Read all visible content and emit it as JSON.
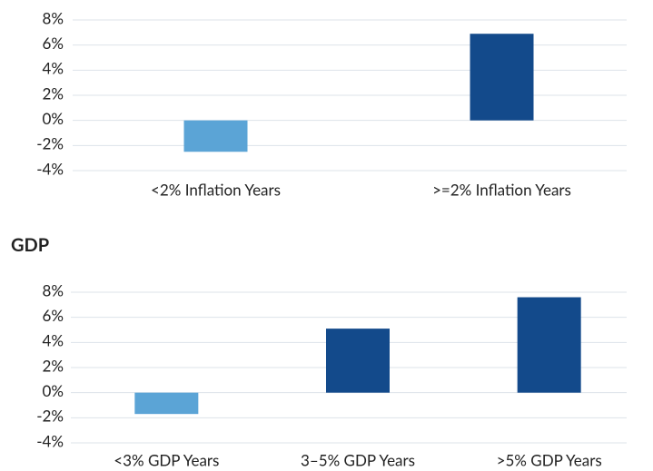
{
  "chart_data": [
    {
      "type": "bar",
      "categories": [
        "<2% Inflation Years",
        ">=2% Inflation Years"
      ],
      "values": [
        -2.5,
        6.9
      ],
      "colors": [
        "#5ba4d6",
        "#134a8b"
      ],
      "ylim": [
        -4,
        8
      ],
      "yticks": [
        {
          "value": -4,
          "label": "-4%"
        },
        {
          "value": -2,
          "label": "-2%"
        },
        {
          "value": 0,
          "label": "0%"
        },
        {
          "value": 2,
          "label": "2%"
        },
        {
          "value": 4,
          "label": "4%"
        },
        {
          "value": 6,
          "label": "6%"
        },
        {
          "value": 8,
          "label": "8%"
        }
      ],
      "grid": true
    },
    {
      "type": "bar",
      "title": "GDP",
      "categories": [
        "<3% GDP Years",
        "3–5% GDP Years",
        ">5% GDP Years"
      ],
      "values": [
        -1.7,
        5.1,
        7.6
      ],
      "colors": [
        "#5ba4d6",
        "#134a8b",
        "#134a8b"
      ],
      "ylim": [
        -4,
        8
      ],
      "yticks": [
        {
          "value": -4,
          "label": "-4%"
        },
        {
          "value": -2,
          "label": "-2%"
        },
        {
          "value": 0,
          "label": "0%"
        },
        {
          "value": 2,
          "label": "2%"
        },
        {
          "value": 4,
          "label": "4%"
        },
        {
          "value": 6,
          "label": "6%"
        },
        {
          "value": 8,
          "label": "8%"
        }
      ],
      "grid": true
    }
  ]
}
